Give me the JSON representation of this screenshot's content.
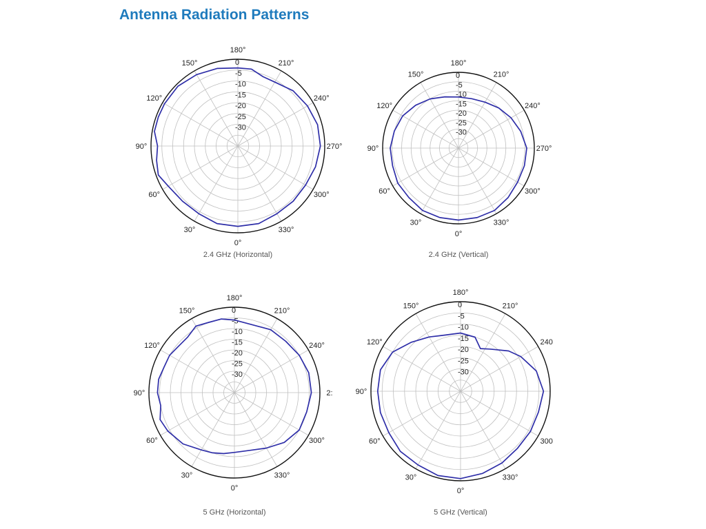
{
  "page": {
    "title": "Antenna Radiation Patterns"
  },
  "colors": {
    "title": "#1f7bbd",
    "pattern": "#2e2ea8",
    "grid": "#bfbfbf"
  },
  "chart_data": [
    {
      "type": "polar",
      "caption": "2.4 GHz (Horizontal)",
      "angle_ticks": [
        {
          "deg": 0,
          "label": "0°"
        },
        {
          "deg": 30,
          "label": "30°"
        },
        {
          "deg": 60,
          "label": "60°"
        },
        {
          "deg": 90,
          "label": "90°"
        },
        {
          "deg": 120,
          "label": "120°"
        },
        {
          "deg": 150,
          "label": "150°"
        },
        {
          "deg": 180,
          "label": "180°"
        },
        {
          "deg": 210,
          "label": "210°"
        },
        {
          "deg": 240,
          "label": "240°"
        },
        {
          "deg": 270,
          "label": "270°"
        },
        {
          "deg": 300,
          "label": "300°"
        },
        {
          "deg": 330,
          "label": "330°"
        }
      ],
      "radial_ticks": [
        "0",
        "-5",
        "-10",
        "-15",
        "-20",
        "-25",
        "-30"
      ],
      "rlim": [
        -40,
        0
      ],
      "angle_direction": "0° at bottom, increasing clockwise",
      "grid": true,
      "pattern_deg": [
        0,
        15,
        30,
        45,
        60,
        70,
        80,
        90,
        100,
        110,
        120,
        135,
        150,
        165,
        180,
        190,
        200,
        210,
        225,
        240,
        255,
        270,
        285,
        300,
        315,
        330,
        345
      ],
      "pattern_db": [
        -3,
        -3,
        -4,
        -4,
        -3,
        -1,
        -2,
        -3,
        -1,
        -1,
        -1,
        -1,
        -2,
        -3,
        -4,
        -4,
        -6,
        -6,
        -4,
        -3,
        -2,
        -2,
        -3,
        -4,
        -4,
        -4,
        -3
      ]
    },
    {
      "type": "polar",
      "caption": "2.4 GHz (Vertical)",
      "angle_ticks": [
        {
          "deg": 0,
          "label": "0°"
        },
        {
          "deg": 30,
          "label": "30°"
        },
        {
          "deg": 60,
          "label": "60°"
        },
        {
          "deg": 90,
          "label": "90°"
        },
        {
          "deg": 120,
          "label": "120°"
        },
        {
          "deg": 150,
          "label": "150°"
        },
        {
          "deg": 180,
          "label": "180°"
        },
        {
          "deg": 210,
          "label": "210°"
        },
        {
          "deg": 240,
          "label": "240°"
        },
        {
          "deg": 270,
          "label": "270°"
        },
        {
          "deg": 300,
          "label": "300°"
        },
        {
          "deg": 330,
          "label": "330°"
        }
      ],
      "radial_ticks": [
        "0",
        "-5",
        "-10",
        "-15",
        "-20",
        "-25",
        "-30"
      ],
      "rlim": [
        -40,
        0
      ],
      "angle_direction": "0° at bottom, increasing clockwise",
      "grid": true,
      "pattern_deg": [
        0,
        15,
        30,
        45,
        60,
        75,
        90,
        105,
        120,
        135,
        150,
        165,
        180,
        195,
        210,
        225,
        240,
        255,
        270,
        285,
        300,
        315,
        330,
        345
      ],
      "pattern_db": [
        -2,
        -2,
        -2,
        -3,
        -3,
        -4,
        -4,
        -5,
        -6,
        -8,
        -10,
        -12,
        -13,
        -13,
        -12,
        -10,
        -8,
        -6,
        -4,
        -4,
        -4,
        -3,
        -2,
        -2
      ]
    },
    {
      "type": "polar",
      "caption": "5 GHz (Horizontal)",
      "angle_ticks": [
        {
          "deg": 0,
          "label": "0°"
        },
        {
          "deg": 30,
          "label": "30°"
        },
        {
          "deg": 60,
          "label": "60°"
        },
        {
          "deg": 90,
          "label": "90°"
        },
        {
          "deg": 120,
          "label": "120°"
        },
        {
          "deg": 150,
          "label": "150°"
        },
        {
          "deg": 180,
          "label": "180°"
        },
        {
          "deg": 210,
          "label": "210°"
        },
        {
          "deg": 240,
          "label": "240°"
        },
        {
          "deg": 270,
          "label": "2:"
        },
        {
          "deg": 300,
          "label": "300°"
        },
        {
          "deg": 330,
          "label": "330°"
        }
      ],
      "radial_ticks": [
        "0",
        "-5",
        "-10",
        "-15",
        "-20",
        "-25",
        "-30"
      ],
      "rlim": [
        -40,
        0
      ],
      "angle_direction": "0° at bottom, increasing clockwise",
      "grid": true,
      "pattern_deg": [
        0,
        10,
        20,
        30,
        45,
        60,
        70,
        80,
        90,
        100,
        110,
        120,
        130,
        140,
        150,
        160,
        170,
        180,
        190,
        200,
        210,
        225,
        240,
        255,
        270,
        285,
        300,
        315,
        330,
        345
      ],
      "pattern_db": [
        -12,
        -11,
        -10,
        -9,
        -6,
        -4,
        -3,
        -5,
        -4,
        -4,
        -5,
        -5,
        -6,
        -6,
        -4,
        -5,
        -5,
        -6,
        -7,
        -7,
        -6,
        -6,
        -5,
        -4,
        -4,
        -5,
        -5,
        -7,
        -10,
        -12
      ]
    },
    {
      "type": "polar",
      "caption": "5 GHz (Vertical)",
      "angle_ticks": [
        {
          "deg": 0,
          "label": "0°"
        },
        {
          "deg": 30,
          "label": "30°"
        },
        {
          "deg": 60,
          "label": "60°"
        },
        {
          "deg": 90,
          "label": "90°"
        },
        {
          "deg": 120,
          "label": "120°"
        },
        {
          "deg": 150,
          "label": "150°"
        },
        {
          "deg": 180,
          "label": "180°"
        },
        {
          "deg": 210,
          "label": "210°"
        },
        {
          "deg": 240,
          "label": "240"
        },
        {
          "deg": 270,
          "label": ""
        },
        {
          "deg": 300,
          "label": "300"
        },
        {
          "deg": 330,
          "label": "330°"
        }
      ],
      "radial_ticks": [
        "0",
        "-5",
        "-10",
        "-15",
        "-20",
        "-25",
        "-30"
      ],
      "rlim": [
        -40,
        0
      ],
      "angle_direction": "0° at bottom, increasing clockwise",
      "grid": true,
      "pattern_deg": [
        0,
        15,
        30,
        45,
        60,
        75,
        90,
        105,
        120,
        135,
        150,
        165,
        180,
        195,
        205,
        215,
        230,
        240,
        255,
        270,
        285,
        300,
        315,
        330,
        345
      ],
      "pattern_db": [
        -1,
        -1,
        -2,
        -2,
        -3,
        -3,
        -3,
        -3,
        -5,
        -9,
        -12,
        -14,
        -14,
        -15,
        -19,
        -17,
        -12,
        -9,
        -5,
        -3,
        -4,
        -4,
        -4,
        -3,
        -2
      ]
    }
  ]
}
